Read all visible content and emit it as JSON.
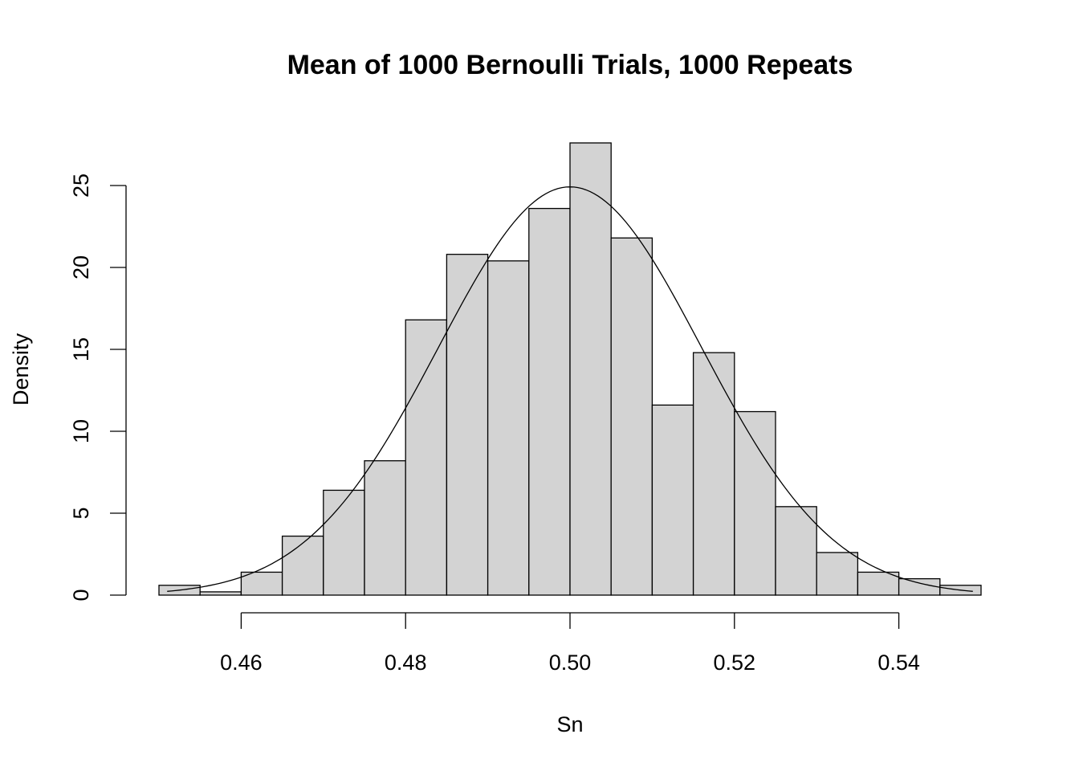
{
  "chart_data": {
    "type": "bar",
    "subtype": "histogram-with-density-curve",
    "title": "Mean of 1000 Bernoulli Trials, 1000 Repeats",
    "xlabel": "Sn",
    "ylabel": "Density",
    "bin_width": 0.005,
    "bins": [
      {
        "x0": 0.45,
        "x1": 0.455,
        "density": 0.6
      },
      {
        "x0": 0.455,
        "x1": 0.46,
        "density": 0.2
      },
      {
        "x0": 0.46,
        "x1": 0.465,
        "density": 1.4
      },
      {
        "x0": 0.465,
        "x1": 0.47,
        "density": 3.6
      },
      {
        "x0": 0.47,
        "x1": 0.475,
        "density": 6.4
      },
      {
        "x0": 0.475,
        "x1": 0.48,
        "density": 8.2
      },
      {
        "x0": 0.48,
        "x1": 0.485,
        "density": 16.8
      },
      {
        "x0": 0.485,
        "x1": 0.49,
        "density": 20.8
      },
      {
        "x0": 0.49,
        "x1": 0.495,
        "density": 20.4
      },
      {
        "x0": 0.495,
        "x1": 0.5,
        "density": 23.6
      },
      {
        "x0": 0.5,
        "x1": 0.505,
        "density": 27.6
      },
      {
        "x0": 0.505,
        "x1": 0.51,
        "density": 21.8
      },
      {
        "x0": 0.51,
        "x1": 0.515,
        "density": 11.6
      },
      {
        "x0": 0.515,
        "x1": 0.52,
        "density": 14.8
      },
      {
        "x0": 0.52,
        "x1": 0.525,
        "density": 11.2
      },
      {
        "x0": 0.525,
        "x1": 0.53,
        "density": 5.4
      },
      {
        "x0": 0.53,
        "x1": 0.535,
        "density": 2.6
      },
      {
        "x0": 0.535,
        "x1": 0.54,
        "density": 1.4
      },
      {
        "x0": 0.54,
        "x1": 0.545,
        "density": 1.0
      },
      {
        "x0": 0.545,
        "x1": 0.55,
        "density": 0.6
      }
    ],
    "curve": {
      "type": "normal",
      "mean": 0.5,
      "sd": 0.01601,
      "x_range": [
        0.451,
        0.549
      ]
    },
    "xlim": [
      0.45,
      0.55
    ],
    "ylim": [
      0,
      27.6
    ],
    "x_ticks": [
      0.46,
      0.48,
      0.5,
      0.52,
      0.54
    ],
    "x_tick_labels": [
      "0.46",
      "0.48",
      "0.50",
      "0.52",
      "0.54"
    ],
    "y_ticks": [
      0,
      5,
      10,
      15,
      20,
      25
    ],
    "y_tick_labels": [
      "0",
      "5",
      "10",
      "15",
      "20",
      "25"
    ],
    "bar_fill": "#d3d3d3",
    "bar_stroke": "#000000",
    "grid": false,
    "legend": "none"
  }
}
